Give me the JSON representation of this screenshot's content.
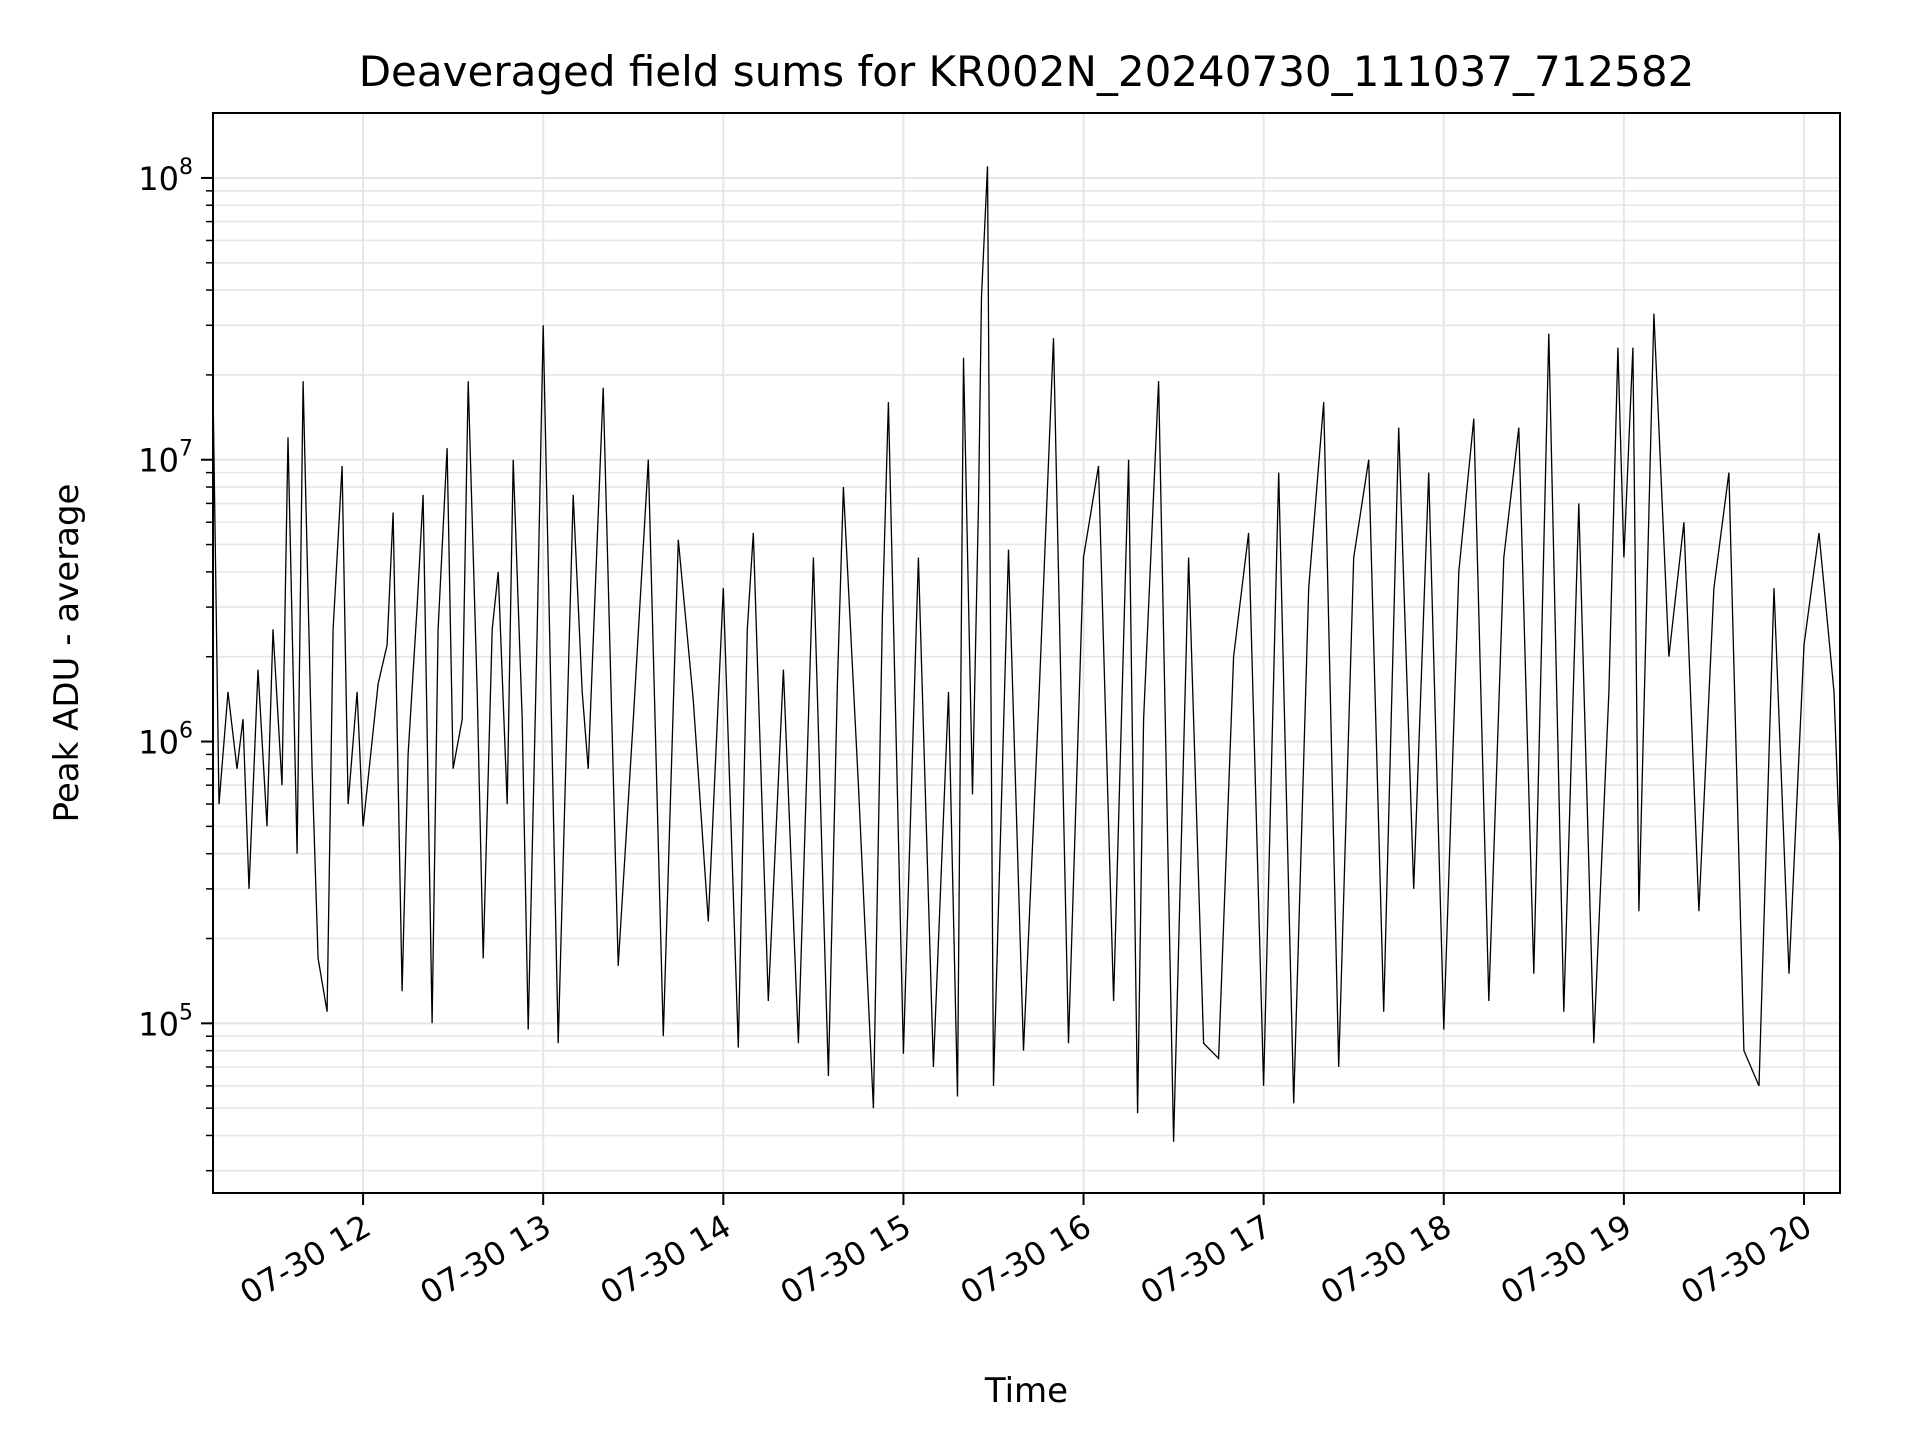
{
  "chart_data": {
    "type": "line",
    "title": "Deaveraged field sums for KR002N_20240730_111037_712582",
    "xlabel": "Time",
    "ylabel": "Peak ADU - average",
    "yscale": "log",
    "ylim": [
      25000,
      170000000
    ],
    "xlim": [
      "2024-07-30T11:10",
      "2024-07-30T20:12"
    ],
    "grid": true,
    "line_color": "#000000",
    "xticks": [
      {
        "t": "2024-07-30T12:00",
        "label": "07-30 12"
      },
      {
        "t": "2024-07-30T13:00",
        "label": "07-30 13"
      },
      {
        "t": "2024-07-30T14:00",
        "label": "07-30 14"
      },
      {
        "t": "2024-07-30T15:00",
        "label": "07-30 15"
      },
      {
        "t": "2024-07-30T16:00",
        "label": "07-30 16"
      },
      {
        "t": "2024-07-30T17:00",
        "label": "07-30 17"
      },
      {
        "t": "2024-07-30T18:00",
        "label": "07-30 18"
      },
      {
        "t": "2024-07-30T19:00",
        "label": "07-30 19"
      },
      {
        "t": "2024-07-30T20:00",
        "label": "07-30 20"
      }
    ],
    "yticks": [
      {
        "value": 100000,
        "base": "10",
        "exp": "5"
      },
      {
        "value": 1000000,
        "base": "10",
        "exp": "6"
      },
      {
        "value": 10000000,
        "base": "10",
        "exp": "7"
      },
      {
        "value": 100000000,
        "base": "10",
        "exp": "8"
      }
    ],
    "series": [
      {
        "x": [
          "2024-07-30T11:10",
          "2024-07-30T11:12",
          "2024-07-30T11:15",
          "2024-07-30T11:18",
          "2024-07-30T11:20",
          "2024-07-30T11:22",
          "2024-07-30T11:25",
          "2024-07-30T11:28",
          "2024-07-30T11:30",
          "2024-07-30T11:33",
          "2024-07-30T11:35",
          "2024-07-30T11:38",
          "2024-07-30T11:40",
          "2024-07-30T11:43",
          "2024-07-30T11:45",
          "2024-07-30T11:48",
          "2024-07-30T11:50",
          "2024-07-30T11:53",
          "2024-07-30T11:55",
          "2024-07-30T11:58",
          "2024-07-30T12:00",
          "2024-07-30T12:05",
          "2024-07-30T12:08",
          "2024-07-30T12:10",
          "2024-07-30T12:13",
          "2024-07-30T12:15",
          "2024-07-30T12:18",
          "2024-07-30T12:20",
          "2024-07-30T12:23",
          "2024-07-30T12:25",
          "2024-07-30T12:28",
          "2024-07-30T12:30",
          "2024-07-30T12:33",
          "2024-07-30T12:35",
          "2024-07-30T12:38",
          "2024-07-30T12:40",
          "2024-07-30T12:43",
          "2024-07-30T12:45",
          "2024-07-30T12:48",
          "2024-07-30T12:50",
          "2024-07-30T12:53",
          "2024-07-30T12:55",
          "2024-07-30T12:58",
          "2024-07-30T13:00",
          "2024-07-30T13:05",
          "2024-07-30T13:10",
          "2024-07-30T13:13",
          "2024-07-30T13:15",
          "2024-07-30T13:20",
          "2024-07-30T13:25",
          "2024-07-30T13:30",
          "2024-07-30T13:35",
          "2024-07-30T13:40",
          "2024-07-30T13:45",
          "2024-07-30T13:50",
          "2024-07-30T13:55",
          "2024-07-30T14:00",
          "2024-07-30T14:05",
          "2024-07-30T14:08",
          "2024-07-30T14:10",
          "2024-07-30T14:15",
          "2024-07-30T14:20",
          "2024-07-30T14:25",
          "2024-07-30T14:30",
          "2024-07-30T14:35",
          "2024-07-30T14:38",
          "2024-07-30T14:40",
          "2024-07-30T14:45",
          "2024-07-30T14:50",
          "2024-07-30T14:53",
          "2024-07-30T14:55",
          "2024-07-30T15:00",
          "2024-07-30T15:05",
          "2024-07-30T15:10",
          "2024-07-30T15:15",
          "2024-07-30T15:18",
          "2024-07-30T15:20",
          "2024-07-30T15:23",
          "2024-07-30T15:25",
          "2024-07-30T15:26",
          "2024-07-30T15:28",
          "2024-07-30T15:30",
          "2024-07-30T15:35",
          "2024-07-30T15:40",
          "2024-07-30T15:45",
          "2024-07-30T15:50",
          "2024-07-30T15:55",
          "2024-07-30T16:00",
          "2024-07-30T16:05",
          "2024-07-30T16:10",
          "2024-07-30T16:15",
          "2024-07-30T16:18",
          "2024-07-30T16:20",
          "2024-07-30T16:25",
          "2024-07-30T16:30",
          "2024-07-30T16:35",
          "2024-07-30T16:40",
          "2024-07-30T16:45",
          "2024-07-30T16:50",
          "2024-07-30T16:55",
          "2024-07-30T17:00",
          "2024-07-30T17:05",
          "2024-07-30T17:10",
          "2024-07-30T17:15",
          "2024-07-30T17:20",
          "2024-07-30T17:25",
          "2024-07-30T17:30",
          "2024-07-30T17:35",
          "2024-07-30T17:40",
          "2024-07-30T17:45",
          "2024-07-30T17:50",
          "2024-07-30T17:55",
          "2024-07-30T18:00",
          "2024-07-30T18:05",
          "2024-07-30T18:10",
          "2024-07-30T18:15",
          "2024-07-30T18:20",
          "2024-07-30T18:25",
          "2024-07-30T18:30",
          "2024-07-30T18:35",
          "2024-07-30T18:40",
          "2024-07-30T18:45",
          "2024-07-30T18:50",
          "2024-07-30T18:55",
          "2024-07-30T18:58",
          "2024-07-30T19:00",
          "2024-07-30T19:03",
          "2024-07-30T19:05",
          "2024-07-30T19:10",
          "2024-07-30T19:15",
          "2024-07-30T19:20",
          "2024-07-30T19:25",
          "2024-07-30T19:30",
          "2024-07-30T19:35",
          "2024-07-30T19:40",
          "2024-07-30T19:45",
          "2024-07-30T19:50",
          "2024-07-30T19:55",
          "2024-07-30T20:00",
          "2024-07-30T20:05",
          "2024-07-30T20:10",
          "2024-07-30T20:12"
        ],
        "y": [
          18000000,
          600000,
          1500000,
          800000,
          1200000,
          300000,
          1800000,
          500000,
          2500000,
          700000,
          12000000,
          400000,
          19000000,
          800000,
          170000,
          110000,
          2500000,
          9500000,
          600000,
          1500000,
          500000,
          1600000,
          2200000,
          6500000,
          130000,
          900000,
          3000000,
          7500000,
          100000,
          2500000,
          11000000,
          800000,
          1200000,
          19000000,
          1500000,
          170000,
          2500000,
          4000000,
          600000,
          10000000,
          1200000,
          95000,
          2500000,
          30000000,
          85000,
          7500000,
          1500000,
          800000,
          18000000,
          160000,
          1200000,
          10000000,
          90000,
          5200000,
          1400000,
          230000,
          3500000,
          82000,
          2500000,
          5500000,
          120000,
          1800000,
          85000,
          4500000,
          65000,
          1600000,
          8000000,
          700000,
          50000,
          2800000,
          16000000,
          78000,
          4500000,
          70000,
          1500000,
          55000,
          23000000,
          650000,
          7000000,
          38000000,
          110000000,
          60000,
          4800000,
          80000,
          1300000,
          27000000,
          85000,
          4500000,
          9500000,
          120000,
          10000000,
          48000,
          1200000,
          19000000,
          38000,
          4500000,
          85000,
          75000,
          2000000,
          5500000,
          60000,
          9000000,
          52000,
          3500000,
          16000000,
          70000,
          4500000,
          10000000,
          110000,
          13000000,
          300000,
          9000000,
          95000,
          4000000,
          14000000,
          120000,
          4500000,
          13000000,
          150000,
          28000000,
          110000,
          7000000,
          85000,
          1500000,
          25000000,
          4500000,
          25000000,
          250000,
          33000000,
          2000000,
          6000000,
          250000,
          3500000,
          9000000,
          80000,
          60000,
          3500000,
          150000,
          2200000,
          5500000,
          1500000,
          400000
        ]
      }
    ]
  }
}
